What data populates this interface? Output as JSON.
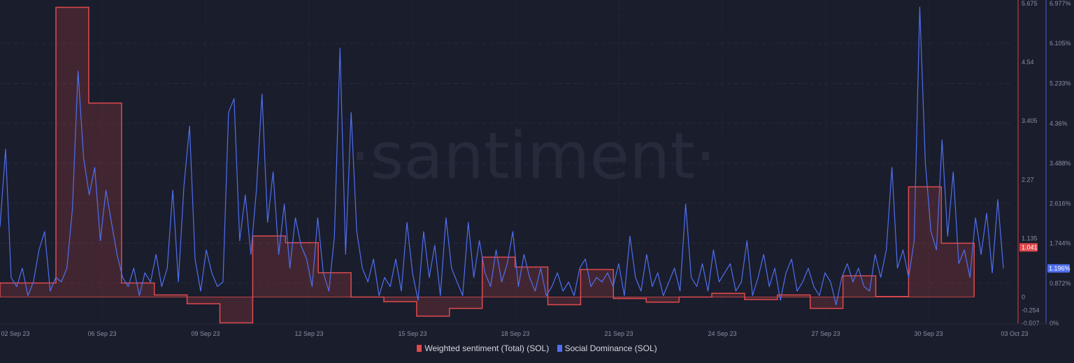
{
  "chart_data": {
    "type": "line",
    "watermark": "·santiment·",
    "x_ticks": [
      "02 Sep 23",
      "06 Sep 23",
      "09 Sep 23",
      "12 Sep 23",
      "15 Sep 23",
      "18 Sep 23",
      "21 Sep 23",
      "24 Sep 23",
      "27 Sep 23",
      "30 Sep 23",
      "03 Oct 23"
    ],
    "y_left": {
      "ticks": [
        "5.675",
        "4.54",
        "3.405",
        "2.27",
        "1.135",
        "0",
        "-0.254",
        "-0.507"
      ],
      "range": [
        -0.507,
        5.675
      ],
      "color": "#e04a4d"
    },
    "y_right": {
      "ticks": [
        "6.977%",
        "6.105%",
        "5.233%",
        "4.36%",
        "3.488%",
        "2.616%",
        "1.744%",
        "0.872%",
        "0%"
      ],
      "range": [
        0,
        6.977
      ],
      "color": "#4f6ff0"
    },
    "grid": true,
    "series": [
      {
        "name": "Weighted sentiment (Total) (SOL)",
        "kind": "step-area",
        "color": "#e04a4d",
        "last_value": "1.041",
        "values": [
          0.27,
          5.6,
          3.75,
          0.27,
          0.04,
          -0.13,
          -0.5,
          1.18,
          1.05,
          0.47,
          0.0,
          -0.09,
          -0.37,
          -0.22,
          0.77,
          0.58,
          -0.15,
          0.53,
          -0.03,
          -0.1,
          0.0,
          0.07,
          -0.05,
          0.04,
          -0.22,
          0.41,
          0.01,
          2.13,
          1.04
        ]
      },
      {
        "name": "Social Dominance (SOL)",
        "kind": "line",
        "unit": "%",
        "color": "#4f6ff0",
        "last_value": "1.196%",
        "values": [
          2.1,
          3.8,
          1.0,
          0.8,
          1.2,
          0.6,
          0.9,
          1.6,
          2.0,
          0.7,
          1.0,
          0.9,
          1.2,
          2.5,
          5.5,
          3.6,
          2.8,
          3.4,
          1.8,
          2.9,
          2.2,
          1.5,
          1.0,
          0.8,
          1.2,
          0.6,
          1.1,
          0.9,
          1.5,
          0.8,
          1.2,
          2.9,
          0.9,
          3.0,
          4.3,
          1.4,
          0.7,
          1.6,
          1.1,
          0.8,
          0.9,
          4.6,
          4.9,
          1.8,
          2.8,
          1.5,
          2.9,
          5.0,
          2.2,
          3.3,
          1.5,
          2.6,
          1.2,
          2.3,
          1.7,
          1.4,
          0.8,
          2.3,
          1.1,
          0.7,
          1.9,
          6.0,
          1.5,
          4.6,
          2.0,
          1.2,
          0.9,
          1.4,
          0.6,
          1.0,
          0.8,
          1.4,
          0.7,
          2.2,
          1.1,
          0.5,
          2.0,
          1.0,
          1.7,
          0.6,
          2.3,
          1.2,
          0.9,
          0.6,
          2.2,
          1.0,
          1.8,
          1.1,
          0.8,
          1.6,
          0.9,
          1.3,
          2.0,
          0.8,
          1.5,
          1.0,
          0.7,
          1.2,
          0.6,
          0.8,
          1.1,
          0.7,
          0.9,
          0.6,
          1.2,
          1.4,
          0.8,
          1.0,
          0.9,
          1.1,
          0.8,
          1.3,
          0.6,
          1.9,
          1.0,
          0.7,
          1.5,
          0.8,
          1.1,
          0.6,
          0.9,
          1.2,
          0.7,
          2.6,
          1.0,
          0.8,
          1.3,
          0.7,
          1.6,
          0.9,
          1.1,
          1.3,
          0.7,
          0.9,
          1.8,
          0.6,
          1.0,
          1.5,
          0.8,
          1.2,
          0.5,
          1.1,
          1.4,
          0.7,
          0.9,
          1.2,
          0.8,
          0.6,
          1.1,
          0.9,
          0.4,
          1.0,
          1.3,
          0.9,
          1.2,
          0.8,
          0.7,
          1.5,
          1.0,
          1.6,
          3.4,
          1.2,
          1.6,
          1.0,
          1.8,
          6.9,
          3.5,
          2.0,
          1.6,
          4.0,
          1.9,
          3.3,
          1.3,
          1.6,
          1.0,
          2.3,
          1.5,
          2.4,
          1.1,
          2.7,
          1.196
        ]
      }
    ]
  },
  "legend": {
    "sentiment_label": "Weighted sentiment (Total) (SOL)",
    "dominance_label": "Social Dominance (SOL)"
  }
}
